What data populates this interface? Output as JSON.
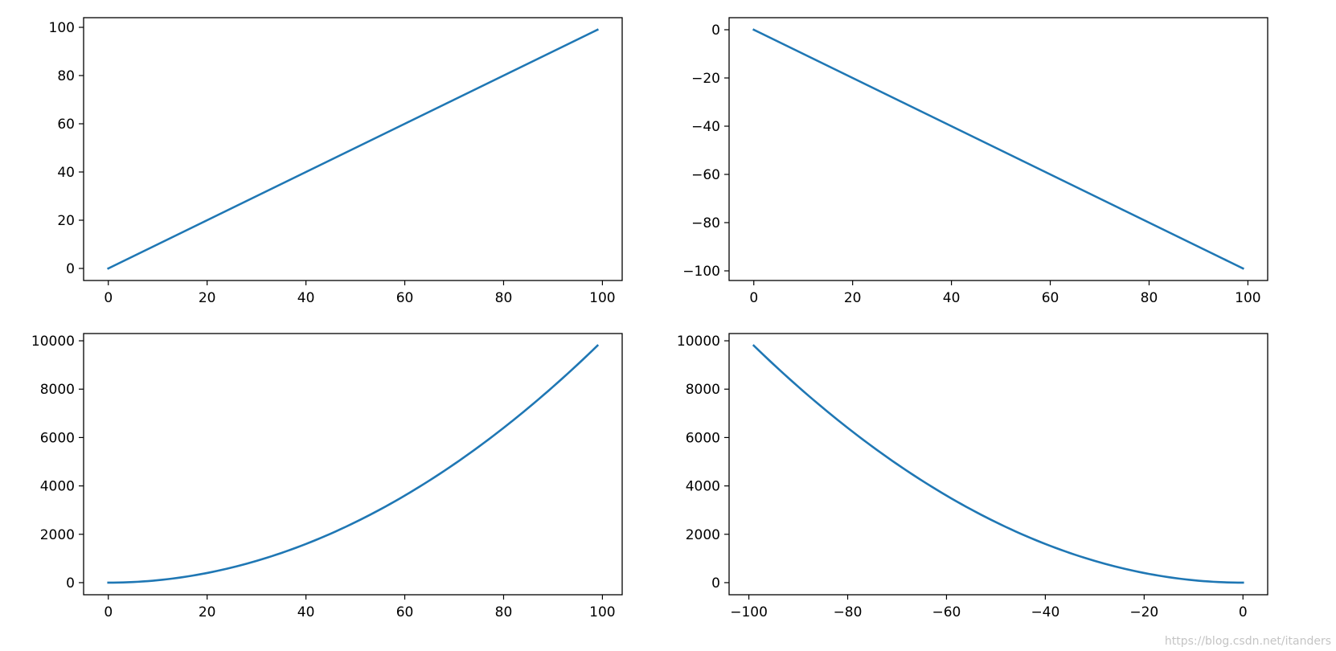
{
  "chart_data": [
    {
      "type": "line",
      "function": "y = x",
      "x": {
        "start": 0,
        "end": 99,
        "step": 1
      },
      "xlim": [
        -5,
        104
      ],
      "ylim": [
        -5,
        104
      ],
      "xticks": [
        0,
        20,
        40,
        60,
        80,
        100
      ],
      "yticks": [
        0,
        20,
        40,
        60,
        80,
        100
      ],
      "xtick_labels": [
        "0",
        "20",
        "40",
        "60",
        "80",
        "100"
      ],
      "ytick_labels": [
        "0",
        "20",
        "40",
        "60",
        "80",
        "100"
      ],
      "color": "#1f77b4",
      "grid": false
    },
    {
      "type": "line",
      "function": "y = -x",
      "x": {
        "start": 0,
        "end": 99,
        "step": 1
      },
      "xlim": [
        -5,
        104
      ],
      "ylim": [
        -104,
        5
      ],
      "xticks": [
        0,
        20,
        40,
        60,
        80,
        100
      ],
      "yticks": [
        0,
        -20,
        -40,
        -60,
        -80,
        -100
      ],
      "xtick_labels": [
        "0",
        "20",
        "40",
        "60",
        "80",
        "100"
      ],
      "ytick_labels": [
        "0",
        "−20",
        "−40",
        "−60",
        "−80",
        "−100"
      ],
      "color": "#1f77b4",
      "grid": false
    },
    {
      "type": "line",
      "function": "y = x^2",
      "x": {
        "start": 0,
        "end": 99,
        "step": 1
      },
      "xlim": [
        -5,
        104
      ],
      "ylim": [
        -500,
        10300
      ],
      "xticks": [
        0,
        20,
        40,
        60,
        80,
        100
      ],
      "yticks": [
        0,
        2000,
        4000,
        6000,
        8000,
        10000
      ],
      "xtick_labels": [
        "0",
        "20",
        "40",
        "60",
        "80",
        "100"
      ],
      "ytick_labels": [
        "0",
        "2000",
        "4000",
        "6000",
        "8000",
        "10000"
      ],
      "color": "#1f77b4",
      "grid": false
    },
    {
      "type": "line",
      "function": "y = x^2",
      "x": {
        "start": -99,
        "end": 0,
        "step": 1
      },
      "xlim": [
        -104,
        5
      ],
      "ylim": [
        -500,
        10300
      ],
      "xticks": [
        -100,
        -80,
        -60,
        -40,
        -20,
        0
      ],
      "yticks": [
        0,
        2000,
        4000,
        6000,
        8000,
        10000
      ],
      "xtick_labels": [
        "−100",
        "−80",
        "−60",
        "−40",
        "−20",
        "0"
      ],
      "ytick_labels": [
        "0",
        "2000",
        "4000",
        "6000",
        "8000",
        "10000"
      ],
      "color": "#1f77b4",
      "grid": false
    }
  ],
  "watermark": "https://blog.csdn.net/itanders"
}
